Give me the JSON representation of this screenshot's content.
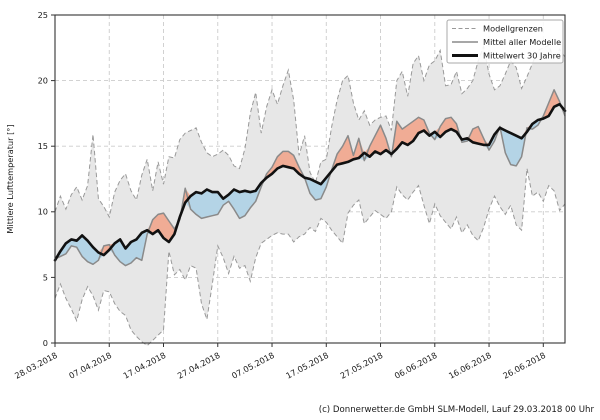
{
  "chart_data": {
    "type": "line",
    "title": "",
    "ylabel": "Mittlere Lufttemperatur [°]",
    "caption": "(c) Donnerwetter.de GmbH SLM-Modell, Lauf 29.03.2018 00 Uhr",
    "start_date": "28.03.2018",
    "days": 95,
    "ylim": [
      0,
      25
    ],
    "y_ticks": [
      0,
      5,
      10,
      15,
      20,
      25
    ],
    "x_tick_days": [
      0,
      10,
      20,
      30,
      40,
      50,
      60,
      70,
      80,
      90
    ],
    "x_tick_labels": [
      "28.03.2018",
      "07.04.2018",
      "17.04.2018",
      "27.04.2018",
      "07.05.2018",
      "17.05.2018",
      "27.05.2018",
      "06.06.2018",
      "16.06.2018",
      "26.06.2018"
    ],
    "grid": true,
    "legend_position": "upper right",
    "legend": [
      {
        "label": "Modellgrenzen",
        "style": "dashed-gray"
      },
      {
        "label": "Mittel aller Modelle",
        "style": "solid-gray"
      },
      {
        "label": "Mittelwert 30 Jahre",
        "style": "thick-black"
      }
    ],
    "series": [
      {
        "name": "Modellgrenzen (Maximum)",
        "values": [
          10.0,
          11.2,
          10.2,
          11.3,
          11.9,
          10.9,
          12.0,
          15.9,
          11.0,
          10.4,
          9.6,
          11.5,
          12.4,
          12.9,
          11.6,
          10.9,
          12.8,
          14.0,
          11.6,
          13.8,
          12.1,
          14.2,
          14.1,
          15.5,
          16.0,
          16.2,
          16.4,
          15.3,
          14.5,
          14.2,
          14.4,
          14.7,
          14.3,
          13.5,
          13.3,
          14.8,
          17.5,
          19.1,
          16.0,
          18.0,
          19.3,
          18.2,
          19.6,
          20.8,
          18.5,
          14.3,
          15.8,
          13.0,
          12.2,
          13.8,
          14.0,
          16.5,
          18.5,
          20.0,
          20.4,
          18.3,
          17.0,
          17.7,
          16.6,
          17.0,
          17.2,
          17.3,
          16.2,
          20.0,
          20.7,
          18.8,
          21.3,
          21.9,
          20.0,
          21.2,
          21.5,
          22.3,
          19.6,
          19.7,
          20.7,
          19.0,
          19.4,
          20.0,
          21.5,
          22.6,
          20.5,
          19.3,
          19.6,
          20.5,
          21.5,
          21.0,
          19.4,
          20.3,
          21.3,
          22.3,
          22.5,
          22.7,
          21.6,
          22.4,
          21.8
        ]
      },
      {
        "name": "Modellgrenzen (Minimum)",
        "values": [
          3.4,
          4.5,
          3.4,
          2.6,
          1.7,
          3.3,
          4.3,
          3.6,
          2.5,
          4.0,
          3.9,
          3.0,
          2.4,
          2.1,
          1.0,
          0.5,
          0.1,
          -0.2,
          0.2,
          0.6,
          1.0,
          7.0,
          5.2,
          5.6,
          4.8,
          5.9,
          5.7,
          3.0,
          1.8,
          4.5,
          7.4,
          6.5,
          5.3,
          6.6,
          5.7,
          5.9,
          4.7,
          6.5,
          7.6,
          7.9,
          8.2,
          8.4,
          8.3,
          8.3,
          7.7,
          8.1,
          8.3,
          8.8,
          8.5,
          9.5,
          9.2,
          8.6,
          8.1,
          7.6,
          9.9,
          10.5,
          10.9,
          9.1,
          9.6,
          10.1,
          9.8,
          9.5,
          10.0,
          11.9,
          11.3,
          10.9,
          11.5,
          12.0,
          10.5,
          9.1,
          10.6,
          9.7,
          9.2,
          8.7,
          9.6,
          8.4,
          9.0,
          8.2,
          7.8,
          8.8,
          10.2,
          11.2,
          10.4,
          9.8,
          10.5,
          9.0,
          8.6,
          13.3,
          11.2,
          11.5,
          10.8,
          12.0,
          11.6,
          10.1,
          10.6
        ]
      },
      {
        "name": "Mittel aller Modelle",
        "values": [
          6.4,
          6.6,
          6.8,
          7.4,
          7.3,
          6.6,
          6.2,
          6.0,
          6.3,
          7.4,
          7.5,
          6.7,
          6.2,
          5.9,
          6.1,
          6.5,
          6.3,
          8.3,
          9.4,
          9.8,
          9.9,
          9.3,
          8.7,
          9.4,
          11.8,
          10.2,
          9.8,
          9.5,
          9.6,
          9.7,
          9.8,
          10.5,
          10.8,
          10.2,
          9.5,
          9.7,
          10.3,
          10.8,
          11.9,
          12.9,
          13.4,
          14.2,
          14.6,
          14.6,
          14.3,
          13.4,
          12.6,
          11.4,
          10.9,
          11.0,
          11.9,
          13.2,
          14.4,
          15.0,
          15.8,
          14.3,
          15.6,
          13.9,
          15.0,
          15.8,
          16.6,
          15.6,
          14.2,
          16.9,
          16.3,
          16.6,
          16.9,
          17.2,
          17.0,
          16.0,
          15.5,
          16.5,
          17.1,
          17.2,
          16.7,
          15.3,
          15.4,
          16.3,
          16.5,
          15.6,
          14.7,
          15.4,
          16.5,
          14.5,
          13.6,
          13.5,
          14.2,
          16.4,
          16.3,
          16.6,
          17.3,
          18.3,
          19.3,
          18.4,
          17.3
        ]
      },
      {
        "name": "Mittelwert 30 Jahre",
        "values": [
          6.3,
          7.0,
          7.6,
          7.9,
          7.8,
          8.2,
          7.8,
          7.3,
          6.9,
          6.7,
          7.1,
          7.6,
          7.9,
          7.2,
          7.7,
          7.9,
          8.4,
          8.6,
          8.3,
          8.6,
          8.0,
          7.7,
          8.3,
          9.6,
          10.7,
          11.2,
          11.5,
          11.4,
          11.7,
          11.5,
          11.5,
          11.0,
          11.3,
          11.7,
          11.5,
          11.6,
          11.5,
          11.6,
          12.2,
          12.6,
          12.9,
          13.3,
          13.5,
          13.4,
          13.3,
          12.9,
          12.6,
          12.5,
          12.3,
          12.1,
          12.6,
          13.1,
          13.6,
          13.7,
          13.8,
          14.0,
          14.1,
          14.5,
          14.2,
          14.6,
          14.4,
          14.7,
          14.4,
          14.8,
          15.3,
          15.1,
          15.4,
          16.0,
          16.2,
          15.8,
          16.1,
          15.7,
          16.1,
          16.3,
          16.1,
          15.5,
          15.6,
          15.3,
          15.2,
          15.1,
          15.1,
          15.9,
          16.4,
          16.2,
          16.0,
          15.8,
          15.6,
          16.1,
          16.7,
          17.0,
          17.1,
          17.3,
          18.0,
          18.2,
          17.7
        ]
      }
    ],
    "colors": {
      "envelope_fill": "#e7e7e7",
      "envelope_edge": "#999999",
      "warm_anomaly": "#f1a58c",
      "cold_anomaly": "#aed2e6",
      "model_mean": "#8a8a8a",
      "mean_30y": "#111111",
      "grid": "#cccccc",
      "axis": "#333333",
      "text": "#1a1a1a",
      "legend_border": "#aaaaaa"
    }
  }
}
